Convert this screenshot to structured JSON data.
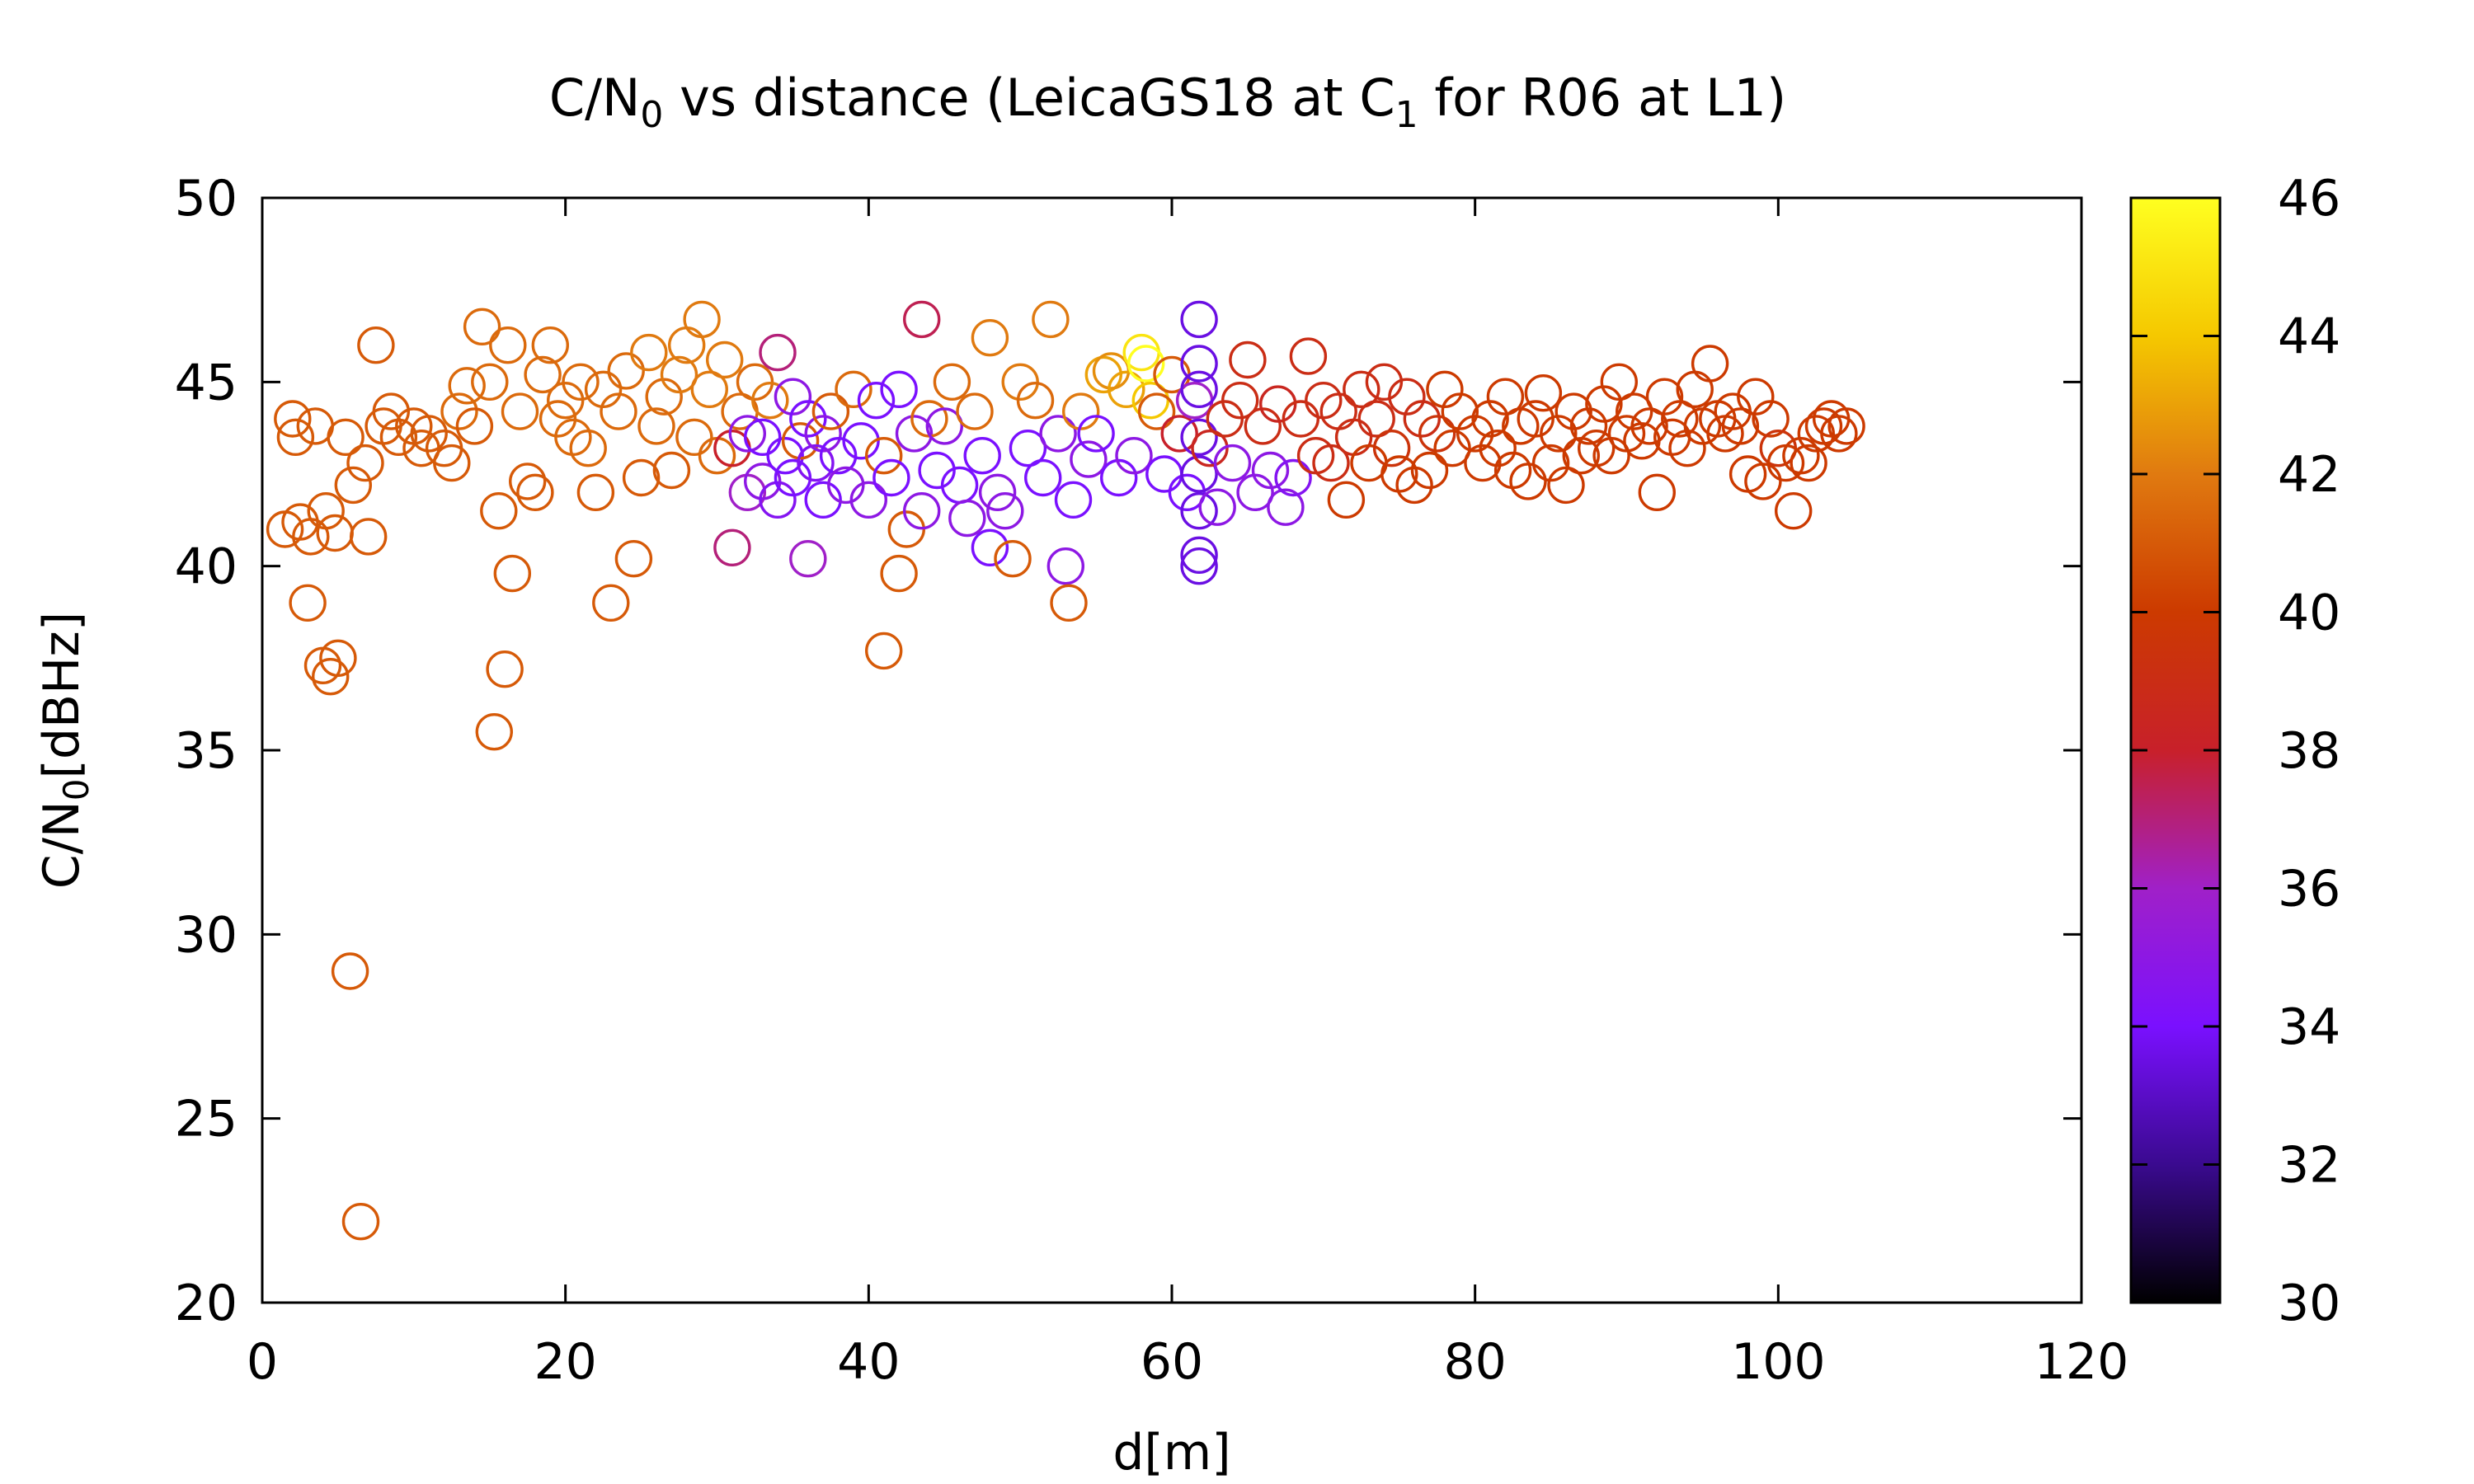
{
  "chart_data": {
    "type": "scatter",
    "title_parts": {
      "base": "C/N",
      "sub": "0",
      "rest": " vs distance (LeicaGS18 at C",
      "sub2": "1",
      "tail": " for R06 at L1)"
    },
    "xlabel": "d[m]",
    "ylabel_parts": {
      "base": "C/N",
      "sub": "0",
      "rest": "[dBHz]"
    },
    "xlim": [
      0,
      120
    ],
    "ylim": [
      20,
      50
    ],
    "xticks": [
      0,
      20,
      40,
      60,
      80,
      100,
      120
    ],
    "yticks": [
      20,
      25,
      30,
      35,
      40,
      45,
      50
    ],
    "colorbar": {
      "range": [
        30,
        46
      ],
      "ticks": [
        30,
        32,
        34,
        36,
        38,
        40,
        42,
        44,
        46
      ],
      "stops": [
        "#000000",
        "#3a0a8f",
        "#7a10ff",
        "#a020c8",
        "#c8202a",
        "#cc3a00",
        "#e07a10",
        "#f5c800",
        "#ffff20"
      ]
    },
    "marker": "open-circle",
    "grid": false,
    "points": [
      [
        1.5,
        41.0,
        41
      ],
      [
        2.0,
        44.0,
        41
      ],
      [
        2.2,
        43.5,
        41
      ],
      [
        2.5,
        41.2,
        41
      ],
      [
        3.0,
        39.0,
        41
      ],
      [
        3.2,
        40.8,
        41
      ],
      [
        3.5,
        43.8,
        41
      ],
      [
        4.0,
        37.3,
        41
      ],
      [
        4.2,
        41.5,
        41
      ],
      [
        4.5,
        37.0,
        41
      ],
      [
        4.8,
        40.9,
        41
      ],
      [
        5.0,
        37.5,
        41
      ],
      [
        5.5,
        43.5,
        41
      ],
      [
        5.8,
        29.0,
        41
      ],
      [
        6.0,
        42.2,
        41
      ],
      [
        6.5,
        22.2,
        41
      ],
      [
        6.8,
        42.8,
        41
      ],
      [
        7.0,
        40.8,
        41
      ],
      [
        7.5,
        46.0,
        41
      ],
      [
        8.0,
        43.8,
        41
      ],
      [
        8.5,
        44.2,
        41
      ],
      [
        9.0,
        43.5,
        41
      ],
      [
        10.0,
        43.8,
        41
      ],
      [
        10.5,
        43.2,
        41
      ],
      [
        11.0,
        43.6,
        41
      ],
      [
        12.0,
        43.2,
        41
      ],
      [
        12.5,
        42.8,
        41
      ],
      [
        13.0,
        44.2,
        41.5
      ],
      [
        13.5,
        44.9,
        41.5
      ],
      [
        14.0,
        43.8,
        41
      ],
      [
        14.5,
        46.5,
        41.5
      ],
      [
        15.0,
        45.0,
        41.5
      ],
      [
        15.3,
        35.5,
        41
      ],
      [
        15.6,
        41.5,
        41
      ],
      [
        16.0,
        37.2,
        41
      ],
      [
        16.2,
        46.0,
        41.5
      ],
      [
        16.5,
        39.8,
        41
      ],
      [
        17.0,
        44.2,
        41.5
      ],
      [
        17.5,
        42.3,
        41
      ],
      [
        18.0,
        42.0,
        41
      ],
      [
        18.5,
        45.2,
        41.5
      ],
      [
        19.0,
        46.0,
        41.5
      ],
      [
        19.5,
        44.0,
        41.5
      ],
      [
        20.0,
        44.5,
        41.5
      ],
      [
        20.5,
        43.5,
        41.5
      ],
      [
        21.0,
        45.0,
        41.5
      ],
      [
        21.5,
        43.2,
        41.5
      ],
      [
        22.0,
        42.0,
        41
      ],
      [
        22.5,
        44.8,
        41.5
      ],
      [
        23.0,
        39.0,
        41
      ],
      [
        23.5,
        44.2,
        41.5
      ],
      [
        24.0,
        45.3,
        41.5
      ],
      [
        24.5,
        40.2,
        41
      ],
      [
        25.0,
        42.4,
        41
      ],
      [
        25.5,
        45.8,
        42
      ],
      [
        26.0,
        43.8,
        41.5
      ],
      [
        26.5,
        44.6,
        41.5
      ],
      [
        27.0,
        42.6,
        41
      ],
      [
        27.5,
        45.2,
        42
      ],
      [
        28.0,
        46.0,
        42
      ],
      [
        28.5,
        43.5,
        41.5
      ],
      [
        29.0,
        46.7,
        42
      ],
      [
        29.5,
        44.8,
        42
      ],
      [
        30.0,
        43.0,
        41.5
      ],
      [
        30.5,
        45.6,
        42
      ],
      [
        31.0,
        43.2,
        38
      ],
      [
        31.0,
        40.5,
        37
      ],
      [
        31.5,
        44.2,
        41.5
      ],
      [
        32.0,
        42.0,
        36
      ],
      [
        32.0,
        43.6,
        35
      ],
      [
        32.5,
        45.0,
        41.5
      ],
      [
        33.0,
        43.5,
        34
      ],
      [
        33.0,
        42.3,
        35
      ],
      [
        33.5,
        44.5,
        42
      ],
      [
        34.0,
        41.8,
        34.5
      ],
      [
        34.0,
        45.8,
        37
      ],
      [
        34.5,
        43.0,
        34
      ],
      [
        35.0,
        44.6,
        35
      ],
      [
        35.0,
        42.4,
        34
      ],
      [
        35.5,
        43.4,
        41
      ],
      [
        36.0,
        40.2,
        36
      ],
      [
        36.0,
        44.0,
        34
      ],
      [
        36.5,
        42.8,
        34.5
      ],
      [
        37.0,
        43.6,
        35
      ],
      [
        37.0,
        41.8,
        34
      ],
      [
        37.5,
        44.2,
        41
      ],
      [
        38.0,
        43.0,
        34
      ],
      [
        38.5,
        42.2,
        35
      ],
      [
        39.0,
        44.8,
        41.5
      ],
      [
        39.5,
        43.4,
        34
      ],
      [
        40.0,
        41.8,
        35
      ],
      [
        40.5,
        44.5,
        34
      ],
      [
        41.0,
        37.7,
        41
      ],
      [
        41.0,
        43.0,
        41
      ],
      [
        41.5,
        42.4,
        34
      ],
      [
        42.0,
        39.8,
        41
      ],
      [
        42.0,
        44.8,
        34
      ],
      [
        42.5,
        41.0,
        41
      ],
      [
        43.0,
        43.6,
        35
      ],
      [
        43.5,
        46.7,
        37.5
      ],
      [
        43.5,
        41.5,
        35
      ],
      [
        44.0,
        44.0,
        41.5
      ],
      [
        44.5,
        42.6,
        34
      ],
      [
        45.0,
        43.8,
        35
      ],
      [
        45.5,
        45.0,
        41.5
      ],
      [
        46.0,
        42.2,
        34
      ],
      [
        46.5,
        41.3,
        35
      ],
      [
        47.0,
        44.2,
        41.5
      ],
      [
        47.5,
        43.0,
        34
      ],
      [
        48.0,
        46.2,
        42
      ],
      [
        48.0,
        40.5,
        34
      ],
      [
        48.5,
        42.0,
        35
      ],
      [
        49.0,
        41.5,
        35
      ],
      [
        49.5,
        40.2,
        41
      ],
      [
        50.0,
        45.0,
        42
      ],
      [
        50.5,
        43.2,
        34
      ],
      [
        51.0,
        44.5,
        41.5
      ],
      [
        51.5,
        42.4,
        34
      ],
      [
        52.0,
        46.7,
        42
      ],
      [
        52.5,
        43.6,
        35
      ],
      [
        53.0,
        40.0,
        35
      ],
      [
        53.2,
        39.0,
        41
      ],
      [
        53.5,
        41.8,
        34
      ],
      [
        54.0,
        44.2,
        42
      ],
      [
        54.5,
        42.9,
        35
      ],
      [
        55.0,
        43.6,
        34
      ],
      [
        55.5,
        45.2,
        43
      ],
      [
        56.0,
        45.3,
        42.5
      ],
      [
        56.5,
        42.4,
        34
      ],
      [
        57.0,
        44.8,
        43
      ],
      [
        57.5,
        43.0,
        35
      ],
      [
        58.0,
        45.8,
        45
      ],
      [
        58.3,
        45.5,
        46
      ],
      [
        58.6,
        44.5,
        44
      ],
      [
        59.0,
        44.2,
        41
      ],
      [
        59.5,
        42.5,
        34
      ],
      [
        60.0,
        45.2,
        41
      ],
      [
        60.5,
        43.6,
        38
      ],
      [
        61.0,
        42.0,
        34
      ],
      [
        61.5,
        44.5,
        36
      ],
      [
        61.8,
        46.7,
        33.5
      ],
      [
        61.8,
        45.5,
        33.5
      ],
      [
        61.8,
        44.8,
        33.5
      ],
      [
        61.8,
        43.5,
        33.5
      ],
      [
        61.8,
        42.5,
        33.5
      ],
      [
        61.8,
        41.5,
        33.5
      ],
      [
        61.8,
        40.3,
        33.5
      ],
      [
        61.8,
        40.0,
        33.5
      ],
      [
        62.5,
        43.2,
        38.5
      ],
      [
        63.0,
        41.6,
        35
      ],
      [
        63.5,
        44.0,
        39
      ],
      [
        64.0,
        42.8,
        35
      ],
      [
        64.5,
        44.5,
        39
      ],
      [
        65.0,
        45.6,
        39
      ],
      [
        65.5,
        42.0,
        35
      ],
      [
        66.0,
        43.8,
        39
      ],
      [
        66.5,
        42.6,
        35
      ],
      [
        67.0,
        44.4,
        38.5
      ],
      [
        67.5,
        41.6,
        35
      ],
      [
        68.0,
        42.4,
        34.5
      ],
      [
        68.5,
        44.0,
        39
      ],
      [
        69.0,
        45.7,
        39
      ],
      [
        69.5,
        43.0,
        39
      ],
      [
        70.0,
        44.5,
        39
      ],
      [
        70.5,
        42.8,
        39
      ],
      [
        71.0,
        44.2,
        39
      ],
      [
        71.5,
        41.8,
        40
      ],
      [
        72.0,
        43.5,
        39
      ],
      [
        72.5,
        44.8,
        39
      ],
      [
        73.0,
        42.8,
        40
      ],
      [
        73.5,
        44.0,
        39
      ],
      [
        74.0,
        45.0,
        39
      ],
      [
        74.5,
        43.2,
        39.5
      ],
      [
        75.0,
        42.5,
        40
      ],
      [
        75.5,
        44.6,
        39
      ],
      [
        76.0,
        42.2,
        40
      ],
      [
        76.5,
        44.0,
        39
      ],
      [
        77.0,
        42.6,
        40
      ],
      [
        77.5,
        43.6,
        39.5
      ],
      [
        78.0,
        44.8,
        40
      ],
      [
        78.5,
        43.2,
        40
      ],
      [
        79.0,
        44.2,
        40
      ],
      [
        80.0,
        43.6,
        40
      ],
      [
        80.5,
        42.8,
        40
      ],
      [
        81.0,
        44.0,
        40
      ],
      [
        81.5,
        43.2,
        40
      ],
      [
        82.0,
        44.6,
        40
      ],
      [
        82.5,
        42.6,
        40
      ],
      [
        83.0,
        43.8,
        40
      ],
      [
        83.5,
        42.3,
        40
      ],
      [
        84.0,
        44.0,
        40
      ],
      [
        84.5,
        44.7,
        40
      ],
      [
        85.0,
        42.8,
        40
      ],
      [
        85.5,
        43.6,
        40
      ],
      [
        86.0,
        42.2,
        40
      ],
      [
        86.5,
        44.2,
        40
      ],
      [
        87.0,
        43.0,
        40
      ],
      [
        87.5,
        43.8,
        40
      ],
      [
        88.0,
        43.2,
        40
      ],
      [
        88.5,
        44.4,
        40
      ],
      [
        89.0,
        43.0,
        40
      ],
      [
        89.5,
        45.0,
        40
      ],
      [
        90.0,
        43.6,
        40
      ],
      [
        90.5,
        44.2,
        40
      ],
      [
        91.0,
        43.4,
        40
      ],
      [
        91.5,
        43.8,
        40
      ],
      [
        92.0,
        42.0,
        40
      ],
      [
        92.5,
        44.6,
        40
      ],
      [
        93.0,
        43.5,
        40
      ],
      [
        93.5,
        44.0,
        40
      ],
      [
        94.0,
        43.2,
        40
      ],
      [
        94.5,
        44.8,
        40
      ],
      [
        95.0,
        43.8,
        40
      ],
      [
        95.5,
        45.5,
        40
      ],
      [
        96.0,
        44.0,
        40
      ],
      [
        96.5,
        43.6,
        40
      ],
      [
        97.0,
        44.2,
        40
      ],
      [
        97.5,
        43.8,
        40
      ],
      [
        98.0,
        42.5,
        40
      ],
      [
        98.5,
        44.6,
        40
      ],
      [
        99.0,
        42.3,
        40
      ],
      [
        99.5,
        44.0,
        40
      ],
      [
        100.0,
        43.2,
        39.5
      ],
      [
        100.5,
        42.8,
        40
      ],
      [
        101.0,
        41.5,
        40
      ],
      [
        101.5,
        43.0,
        40
      ],
      [
        102.0,
        42.8,
        40
      ],
      [
        102.5,
        43.6,
        40
      ],
      [
        103.0,
        43.8,
        40
      ],
      [
        103.5,
        44.0,
        40
      ],
      [
        104.0,
        43.6,
        40
      ],
      [
        104.5,
        43.8,
        40
      ]
    ]
  }
}
